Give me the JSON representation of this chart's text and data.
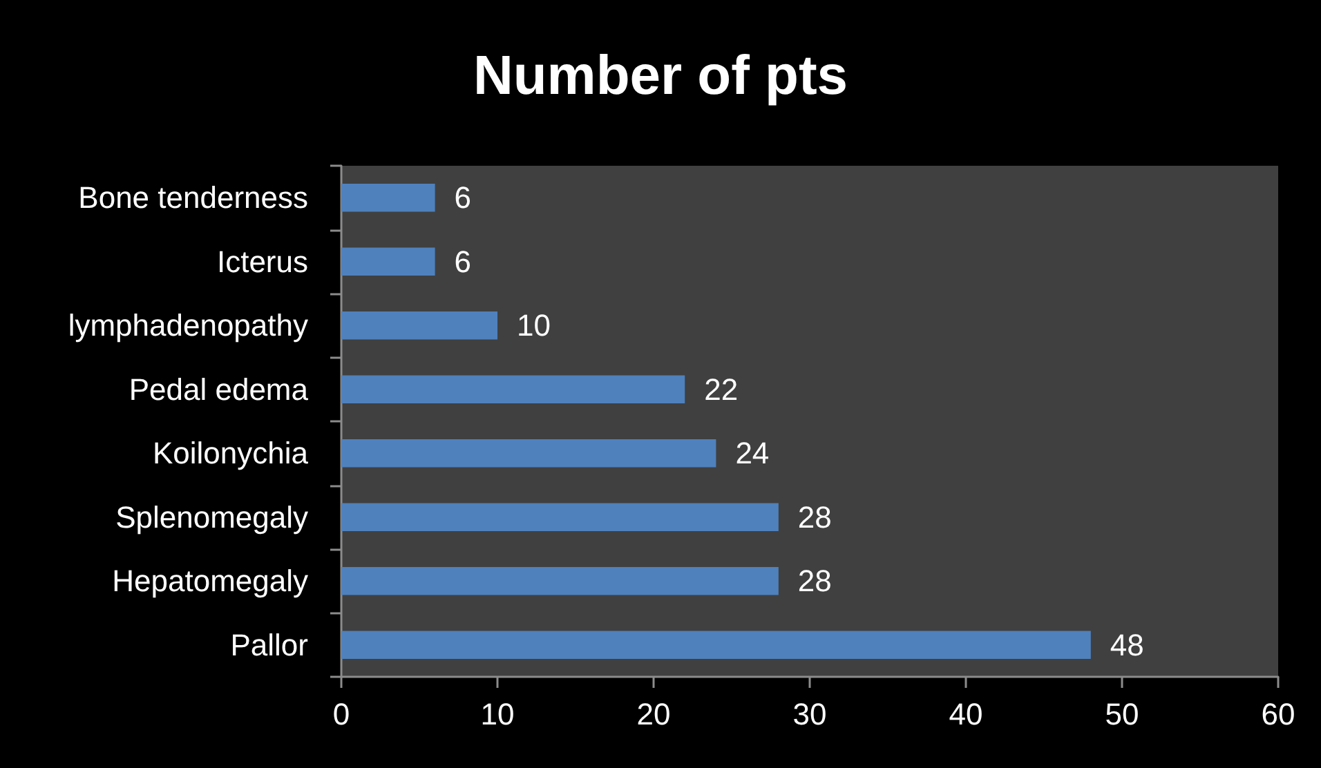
{
  "chart_data": {
    "type": "bar",
    "title": "Number of pts",
    "orientation": "horizontal",
    "categories": [
      "Bone tenderness",
      "Icterus",
      "lymphadenopathy",
      "Pedal edema",
      "Koilonychia",
      "Splenomegaly",
      "Hepatomegaly",
      "Pallor"
    ],
    "values": [
      6,
      6,
      10,
      22,
      24,
      28,
      28,
      48
    ],
    "color": "#4f81bd",
    "xlim": [
      0,
      60
    ],
    "xticks": [
      0,
      10,
      20,
      30,
      40,
      50,
      60
    ],
    "grid": false,
    "data_labels": true
  }
}
